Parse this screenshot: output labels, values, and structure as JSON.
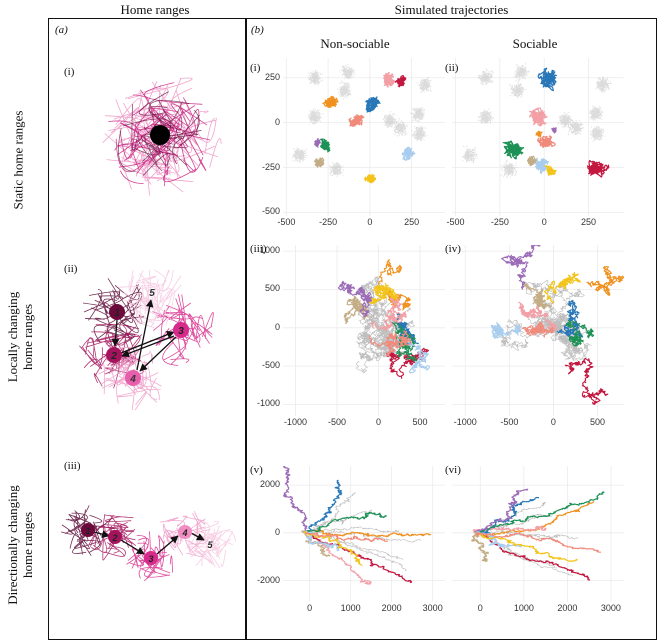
{
  "headers": {
    "left": "Home ranges",
    "right": "Simulated trajectories"
  },
  "row_labels": [
    "Static home ranges",
    "Locally changing home ranges",
    "Directionally changing home ranges"
  ],
  "row_label_lines": [
    [
      "Static home ranges"
    ],
    [
      "Locally changing",
      "home ranges"
    ],
    [
      "Directionally changing",
      "home ranges"
    ]
  ],
  "panel_a": {
    "label": "(a)",
    "sublabels": [
      "(i)",
      "(ii)",
      "(iii)"
    ],
    "local_nodes": [
      "1",
      "2",
      "3",
      "4",
      "5"
    ],
    "directional_nodes": [
      "1",
      "2",
      "3",
      "4",
      "5"
    ]
  },
  "panel_b": {
    "label": "(b)",
    "col_titles": [
      "Non-sociable",
      "Sociable"
    ],
    "sublabels": [
      "(i)",
      "(ii)",
      "(iii)",
      "(iv)",
      "(v)",
      "(vi)"
    ]
  },
  "colors": {
    "orange": "#f0911f",
    "blue": "#2777b8",
    "pink": "#f2a0a6",
    "red": "#c3173f",
    "green": "#1e9156",
    "tan": "#c3ad86",
    "purple": "#9b6bb7",
    "lightblue": "#a9cdee",
    "yellow": "#f2c41a",
    "salmon": "#f08b7c",
    "grey": "#bdbdbd",
    "hr_dark": "#5c0a36",
    "hr_mid": "#c4197a",
    "hr_light": "#ef9ac8"
  },
  "chart_data": [
    {
      "type": "scatter",
      "id": "b-i",
      "title": "Non-sociable",
      "xlim": [
        -520,
        450
      ],
      "ylim": [
        -520,
        360
      ],
      "xticks": [
        -500,
        -250,
        0,
        250
      ],
      "yticks": [
        -500,
        -250,
        0,
        250
      ],
      "xtick_labels": [
        "-500",
        "-250",
        "0",
        "250"
      ],
      "ytick_labels": [
        "-500",
        "-250",
        "0",
        "250"
      ],
      "clusters": [
        {
          "color": "orange",
          "x": -235,
          "y": 115,
          "r": 55
        },
        {
          "color": "blue",
          "x": 20,
          "y": 90,
          "r": 70
        },
        {
          "color": "pink",
          "x": 115,
          "y": 235,
          "r": 55
        },
        {
          "color": "red",
          "x": 190,
          "y": 225,
          "r": 45
        },
        {
          "color": "salmon",
          "x": -85,
          "y": 5,
          "r": 60
        },
        {
          "color": "green",
          "x": -265,
          "y": -130,
          "r": 50
        },
        {
          "color": "tan",
          "x": -300,
          "y": -225,
          "r": 45
        },
        {
          "color": "purple",
          "x": -310,
          "y": -115,
          "r": 30
        },
        {
          "color": "lightblue",
          "x": 235,
          "y": -170,
          "r": 55
        },
        {
          "color": "yellow",
          "x": 10,
          "y": -310,
          "r": 45
        }
      ]
    },
    {
      "type": "scatter",
      "id": "b-ii",
      "title": "Sociable",
      "xlim": [
        -520,
        450
      ],
      "ylim": [
        -520,
        360
      ],
      "xticks": [
        -500,
        -250,
        0,
        250
      ],
      "yticks": [
        -500,
        -250,
        0,
        250
      ],
      "xtick_labels": [
        "-500",
        "-250",
        "0",
        "250"
      ],
      "ytick_labels": [],
      "clusters": [
        {
          "color": "blue",
          "x": 20,
          "y": 240,
          "r": 85
        },
        {
          "color": "pink",
          "x": -40,
          "y": 30,
          "r": 80
        },
        {
          "color": "green",
          "x": -175,
          "y": -150,
          "r": 80
        },
        {
          "color": "salmon",
          "x": 10,
          "y": -110,
          "r": 60
        },
        {
          "color": "lightblue",
          "x": -20,
          "y": -230,
          "r": 60
        },
        {
          "color": "yellow",
          "x": 40,
          "y": -265,
          "r": 40
        },
        {
          "color": "red",
          "x": 295,
          "y": -255,
          "r": 75
        },
        {
          "color": "tan",
          "x": -70,
          "y": -215,
          "r": 40
        },
        {
          "color": "purple",
          "x": 55,
          "y": -45,
          "r": 20
        },
        {
          "color": "orange",
          "x": -30,
          "y": -60,
          "r": 25
        }
      ]
    },
    {
      "type": "line",
      "id": "b-iii",
      "xlim": [
        -1150,
        800
      ],
      "ylim": [
        -1150,
        1080
      ],
      "xticks": [
        -1000,
        -500,
        0,
        500
      ],
      "yticks": [
        -1000,
        -500,
        0,
        500,
        1000
      ],
      "xtick_labels": [
        "-1000",
        "-500",
        "0",
        "500"
      ],
      "ytick_labels": [
        "-1000",
        "-500",
        "0",
        "500",
        "1000"
      ],
      "center": [
        150,
        150
      ],
      "spread": 520,
      "series": [
        "orange",
        "blue",
        "pink",
        "red",
        "green",
        "tan",
        "purple",
        "lightblue",
        "yellow",
        "salmon"
      ]
    },
    {
      "type": "line",
      "id": "b-iv",
      "xlim": [
        -1150,
        800
      ],
      "ylim": [
        -1150,
        1080
      ],
      "xticks": [
        -1000,
        -500,
        0,
        500
      ],
      "yticks": [
        -1000,
        -500,
        0,
        500,
        1000
      ],
      "xtick_labels": [
        "-1000",
        "-500",
        "0",
        "500"
      ],
      "ytick_labels": [],
      "center": [
        200,
        0
      ],
      "spread": 430,
      "series": [
        "orange",
        "blue",
        "pink",
        "red",
        "green",
        "tan",
        "purple",
        "lightblue",
        "yellow",
        "salmon"
      ]
    },
    {
      "type": "line",
      "id": "b-v",
      "xlim": [
        -650,
        3300
      ],
      "ylim": [
        -2900,
        2800
      ],
      "xticks": [
        0,
        1000,
        2000,
        3000
      ],
      "yticks": [
        -2000,
        0,
        2000
      ],
      "xtick_labels": [
        "0",
        "1000",
        "2000",
        "3000"
      ],
      "ytick_labels": [
        "-2000",
        "0",
        "2000"
      ],
      "series": [
        "orange",
        "blue",
        "pink",
        "red",
        "green",
        "tan",
        "purple",
        "lightblue",
        "yellow",
        "salmon"
      ]
    },
    {
      "type": "line",
      "id": "b-vi",
      "xlim": [
        -650,
        3300
      ],
      "ylim": [
        -2900,
        2800
      ],
      "xticks": [
        0,
        1000,
        2000,
        3000
      ],
      "yticks": [
        -2000,
        0,
        2000
      ],
      "xtick_labels": [
        "0",
        "1000",
        "2000",
        "3000"
      ],
      "ytick_labels": [],
      "series": [
        "orange",
        "blue",
        "pink",
        "red",
        "green",
        "tan",
        "purple",
        "lightblue",
        "yellow",
        "salmon"
      ]
    }
  ]
}
